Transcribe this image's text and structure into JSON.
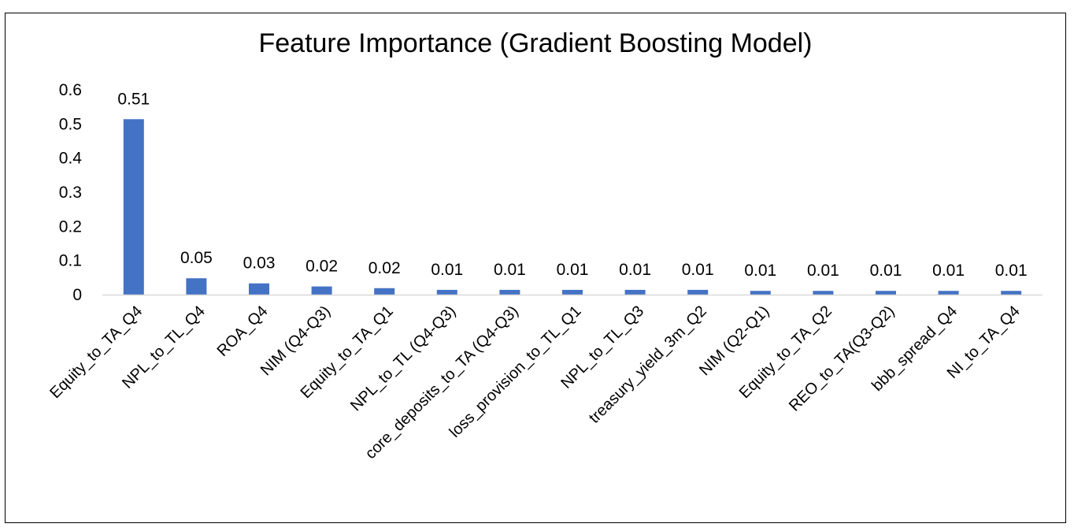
{
  "chart_data": {
    "type": "bar",
    "title": "Feature Importance (Gradient Boosting Model)",
    "xlabel": "",
    "ylabel": "",
    "ylim": [
      0,
      0.6
    ],
    "yticks": [
      "0",
      "0.1",
      "0.2",
      "0.3",
      "0.4",
      "0.5",
      "0.6"
    ],
    "grid": false,
    "legend": "none",
    "bar_color": "#4472C4",
    "categories": [
      "Equity_to_TA_Q4",
      "NPL_to_TL_Q4",
      "ROA_Q4",
      "NIM (Q4-Q3)",
      "Equity_to_TA_Q1",
      "NPL_to_TL (Q4-Q3)",
      "core_deposits_to_TA (Q4-Q3)",
      "loss_provision_to_TL_Q1",
      "NPL_to_TL_Q3",
      "treasury_yield_3m_Q2",
      "NIM (Q2-Q1)",
      "Equity_to_TA_Q2",
      "REO_to_TA(Q3-Q2)",
      "bbb_spread_Q4",
      "NI_to_TA_Q4"
    ],
    "values": [
      0.514,
      0.048,
      0.033,
      0.024,
      0.019,
      0.014,
      0.014,
      0.014,
      0.014,
      0.014,
      0.011,
      0.011,
      0.011,
      0.011,
      0.011
    ],
    "value_labels": [
      "0.51",
      "0.05",
      "0.03",
      "0.02",
      "0.02",
      "0.01",
      "0.01",
      "0.01",
      "0.01",
      "0.01",
      "0.01",
      "0.01",
      "0.01",
      "0.01",
      "0.01"
    ]
  }
}
